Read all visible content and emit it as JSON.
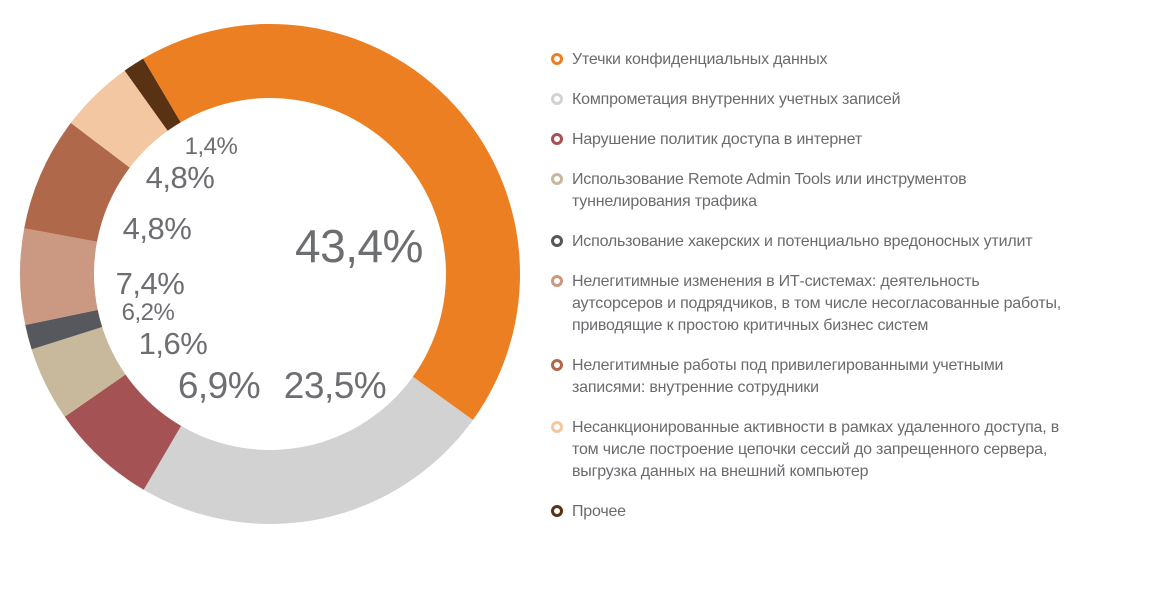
{
  "chart_data": {
    "type": "pie",
    "variant": "donut",
    "title": "",
    "start_angle_deg": -30.5,
    "legend_position": "right",
    "categories": [
      "Утечки конфиденциальных данных",
      "Компрометация внутренних учетных записей",
      "Нарушение политик доступа в интернет",
      "Использование Remote Admin Tools или инструментов туннелирования трафика",
      "Использование хакерских и потенциально вредоносных утилит",
      "Нелегитимные изменения в ИТ-системах: деятельность аутсорсеров и подрядчиков, в том числе несогласованные работы, приводящие к простою критичных бизнес систем",
      "Нелегитимные работы под привилегированными учетными записями: внутренние сотрудники",
      "Несанкционированные активности в рамках удаленного доступа, в том числе построение цепочки сессий до запрещенного сервера, выгрузка данных на внешний компьютер",
      "Прочее"
    ],
    "values": [
      43.4,
      23.5,
      6.9,
      4.8,
      1.6,
      6.2,
      7.4,
      4.8,
      1.4
    ],
    "labels": [
      "43,4%",
      "23,5%",
      "6,9%",
      "4,8%",
      "1,6%",
      "6,2%",
      "7,4%",
      "4,8%",
      "1,4%"
    ],
    "colors": [
      "#EC7F21",
      "#D2D2D3",
      "#A45253",
      "#C8B89C",
      "#57585D",
      "#CB9881",
      "#B0684A",
      "#F2C7A1",
      "#583213"
    ]
  },
  "legend": {
    "items": [
      {
        "color": "#EC7F21",
        "label": "Утечки конфиденциальных данных",
        "lines": [
          "Утечки конфиденциальных данных"
        ]
      },
      {
        "color": "#D2D2D3",
        "label": "Компрометация внутренних учетных записей",
        "lines": [
          "Компрометация внутренних учетных записей"
        ]
      },
      {
        "color": "#A45253",
        "label": "Нарушение политик доступа в интернет",
        "lines": [
          "Нарушение политик доступа в интернет"
        ]
      },
      {
        "color": "#C8B89C",
        "label": "Использование Remote Admin Tools или инструментов туннелирования трафика",
        "lines": [
          "Использование Remote Admin Tools или инструментов",
          "туннелирования трафика"
        ]
      },
      {
        "color": "#57585D",
        "label": "Использование хакерских и потенциально вредоносных утилит",
        "lines": [
          "Использование хакерских и потенциально вредоносных утилит"
        ]
      },
      {
        "color": "#CB9881",
        "label": "Нелегитимные изменения в ИТ-системах: деятельность аутсорсеров и подрядчиков, в том числе несогласованные работы, приводящие к простою критичных бизнес систем",
        "lines": [
          "Нелегитимные изменения в ИТ-системах: деятельность",
          "аутсорсеров и подрядчиков, в том числе несогласованные работы,",
          "приводящие к простою критичных бизнес систем"
        ]
      },
      {
        "color": "#B0684A",
        "label": "Нелегитимные работы под привилегированными учетными записями: внутренние сотрудники",
        "lines": [
          "Нелегитимные работы под привилегированными учетными",
          "записями: внутренние сотрудники"
        ]
      },
      {
        "color": "#F2C7A1",
        "label": "Несанкционированные активности в рамках удаленного доступа, в том числе построение цепочки сессий до запрещенного сервера, выгрузка данных на внешний компьютер",
        "lines": [
          "Несанкционированные активности в рамках удаленного доступа, в",
          "том числе построение цепочки сессий до запрещенного сервера,",
          "выгрузка данных на внешний компьютер"
        ]
      },
      {
        "color": "#583213",
        "label": "Прочее",
        "lines": [
          "Прочее"
        ]
      }
    ]
  }
}
